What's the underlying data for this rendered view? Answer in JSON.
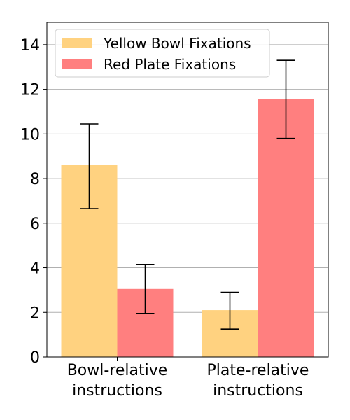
{
  "chart_data": {
    "type": "bar",
    "title": "",
    "xlabel": "",
    "ylabel": "",
    "ylim": [
      0,
      15
    ],
    "yticks": [
      0,
      2,
      4,
      6,
      8,
      10,
      12,
      14
    ],
    "grid": "horizontal",
    "legend_position": "top-left",
    "categories": [
      [
        "Bowl-relative",
        "instructions"
      ],
      [
        "Plate-relative",
        "instructions"
      ]
    ],
    "series": [
      {
        "name": "Yellow Bowl Fixations",
        "color": "#ffd280",
        "values": [
          8.6,
          2.1
        ],
        "err_low": [
          6.65,
          1.25
        ],
        "err_high": [
          10.45,
          2.9
        ]
      },
      {
        "name": "Red Plate Fixations",
        "color": "#ff7f7f",
        "values": [
          3.05,
          11.55
        ],
        "err_low": [
          1.95,
          9.8
        ],
        "err_high": [
          4.15,
          13.3
        ]
      }
    ]
  }
}
